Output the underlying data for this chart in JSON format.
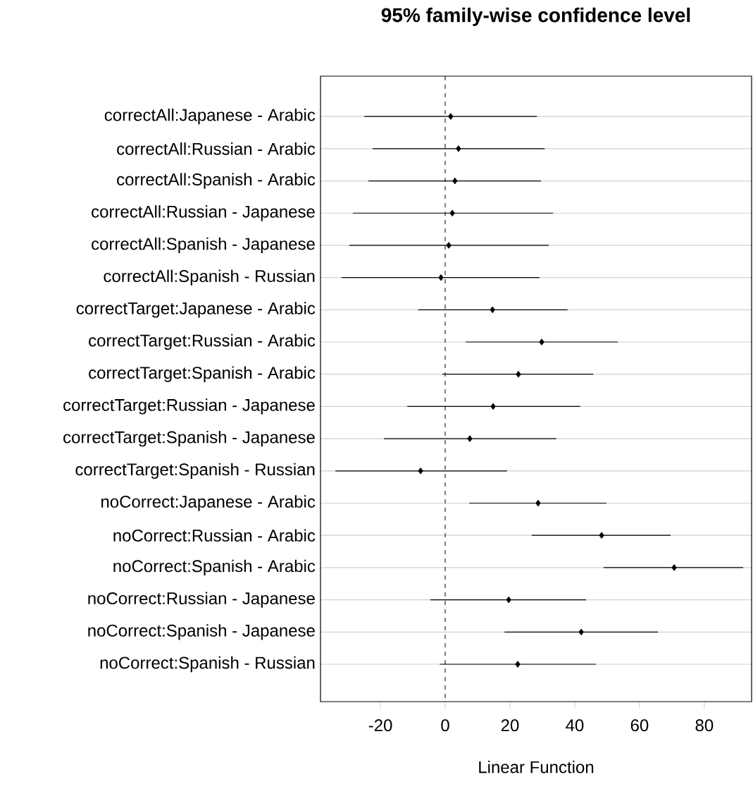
{
  "chart_data": {
    "type": "scatter",
    "title": "95% family-wise confidence level",
    "xlabel": "Linear Function",
    "orientation": "horizontal",
    "categories": [
      "correctAll:Japanese - Arabic",
      "correctAll:Russian - Arabic",
      "correctAll:Spanish - Arabic",
      "correctAll:Russian - Japanese",
      "correctAll:Spanish - Japanese",
      "correctAll:Spanish - Russian",
      "correctTarget:Japanese - Arabic",
      "correctTarget:Russian - Arabic",
      "correctTarget:Spanish - Arabic",
      "correctTarget:Russian - Japanese",
      "correctTarget:Spanish - Japanese",
      "correctTarget:Spanish - Russian",
      "noCorrect:Japanese - Arabic",
      "noCorrect:Russian - Arabic",
      "noCorrect:Spanish - Arabic",
      "noCorrect:Russian - Japanese",
      "noCorrect:Spanish - Japanese",
      "noCorrect:Spanish - Russian"
    ],
    "values": [
      1.7,
      4.1,
      3.0,
      2.2,
      1.1,
      -1.3,
      14.6,
      29.8,
      22.6,
      14.8,
      7.6,
      -7.6,
      28.7,
      48.3,
      70.7,
      19.6,
      42.0,
      22.4
    ],
    "errors": [
      [
        -25.0,
        28.3
      ],
      [
        -22.4,
        30.7
      ],
      [
        -23.7,
        29.6
      ],
      [
        -28.5,
        33.3
      ],
      [
        -29.6,
        32.0
      ],
      [
        -32.0,
        29.1
      ],
      [
        -8.3,
        37.8
      ],
      [
        6.3,
        53.3
      ],
      [
        -0.9,
        45.7
      ],
      [
        -11.7,
        41.7
      ],
      [
        -18.9,
        34.3
      ],
      [
        -33.9,
        19.1
      ],
      [
        7.4,
        49.8
      ],
      [
        26.7,
        69.6
      ],
      [
        48.9,
        92.0
      ],
      [
        -4.6,
        43.5
      ],
      [
        18.3,
        65.7
      ],
      [
        -1.7,
        46.5
      ]
    ],
    "xlim": [
      -38.5,
      94.6
    ],
    "xticks": [
      -20,
      0,
      20,
      40,
      60,
      80
    ],
    "grid": "y",
    "marker": "diamond",
    "color": "#000000",
    "ref_lines": [
      {
        "axis": "x",
        "value": 0,
        "line_style": "dashed",
        "color": "#000000"
      }
    ]
  }
}
